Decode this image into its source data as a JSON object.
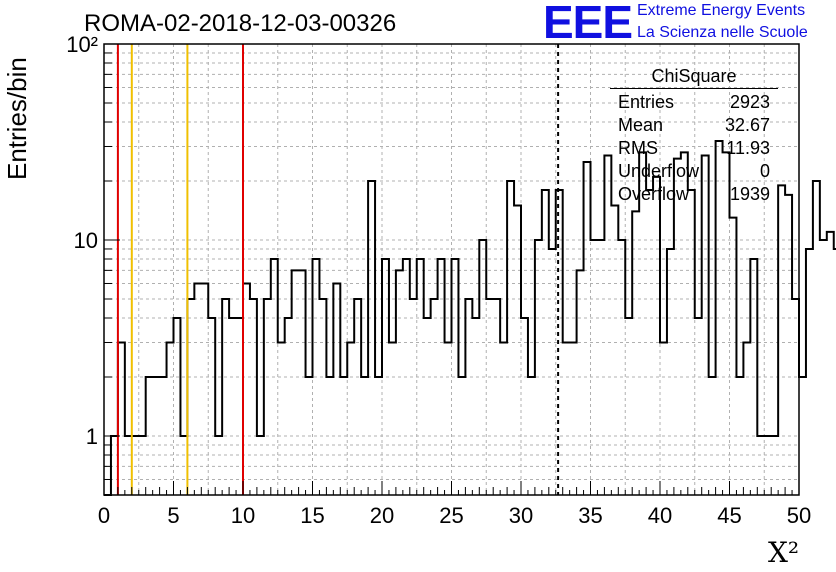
{
  "header": {
    "run_title": "ROMA-02-2018-12-03-00326",
    "logo_mark": "EEE",
    "logo_line1": "Extreme Energy Events",
    "logo_line2": "La Scienza nelle Scuole"
  },
  "stats_box": {
    "title": "ChiSquare",
    "rows": [
      {
        "key": "Entries",
        "value": "2923"
      },
      {
        "key": "Mean",
        "value": "32.67"
      },
      {
        "key": "RMS",
        "value": "11.93"
      },
      {
        "key": "Underflow",
        "value": "0"
      },
      {
        "key": "Overflow",
        "value": "1939"
      }
    ]
  },
  "colors": {
    "red_line": "#e00000",
    "yellow_line": "#f0c000",
    "histogram": "#000000",
    "grid": "#b0b0b0",
    "logo": "#1010e0"
  },
  "chart_data": {
    "type": "histogram",
    "title": "ROMA-02-2018-12-03-00326",
    "xlabel": "X²",
    "ylabel": "Entries/bin",
    "xlim": [
      0,
      50
    ],
    "ylim": [
      0.5,
      100
    ],
    "yscale": "log",
    "grid": true,
    "bin_width": 0.5,
    "x_ticks": [
      0,
      5,
      10,
      15,
      20,
      25,
      30,
      35,
      40,
      45,
      50
    ],
    "x_tick_labels": [
      "0",
      "5",
      "10",
      "15",
      "20",
      "25",
      "30",
      "35",
      "40",
      "45",
      "50"
    ],
    "y_ticks": [
      1,
      10,
      100
    ],
    "y_tick_labels": [
      "1",
      "10",
      "10²"
    ],
    "vertical_lines": [
      {
        "x": 1,
        "color": "red"
      },
      {
        "x": 10,
        "color": "red"
      },
      {
        "x": 2,
        "color": "yellow"
      },
      {
        "x": 6,
        "color": "yellow"
      },
      {
        "x": 32.67,
        "color": "black",
        "style": "dashed"
      }
    ],
    "counts": [
      0,
      1,
      3,
      1,
      1,
      1,
      2,
      2,
      2,
      3,
      4,
      1,
      5,
      6,
      6,
      4,
      1,
      5,
      4,
      4,
      6,
      5,
      1,
      5,
      8,
      3,
      4,
      7,
      7,
      2,
      8,
      5,
      2,
      6,
      2,
      3,
      5,
      2,
      20,
      2,
      8,
      3,
      7,
      8,
      5,
      8,
      4,
      5,
      8,
      3,
      8,
      2,
      5,
      4,
      10,
      5,
      5,
      3,
      20,
      15,
      4,
      2,
      10,
      18,
      9,
      18,
      3,
      3,
      7,
      25,
      10,
      10,
      27,
      15,
      10,
      4,
      14,
      28,
      18,
      21,
      3,
      9,
      26,
      28,
      18,
      4,
      27,
      2,
      32,
      28,
      13,
      2,
      3,
      8,
      1,
      1,
      1,
      19,
      17,
      5,
      2,
      9,
      20,
      10,
      11,
      9,
      20,
      5,
      3,
      10,
      2,
      3,
      1,
      20,
      6,
      8,
      5,
      4,
      20,
      2,
      27,
      1,
      15,
      9,
      15,
      3,
      13,
      1,
      17,
      5,
      27,
      4,
      7,
      4,
      7,
      8,
      8,
      10,
      10,
      1,
      28,
      6,
      40,
      5,
      3,
      5,
      4,
      10,
      10,
      7,
      10,
      8,
      20,
      5,
      3,
      7,
      4,
      4,
      10,
      22,
      18,
      9,
      14,
      20,
      18,
      1,
      28,
      8,
      32,
      10,
      4,
      13,
      4,
      20,
      12,
      17,
      5,
      14,
      8,
      20,
      12,
      18,
      7,
      8,
      4,
      20,
      35,
      25,
      22,
      32,
      20,
      13,
      26,
      10,
      22,
      4
    ]
  }
}
